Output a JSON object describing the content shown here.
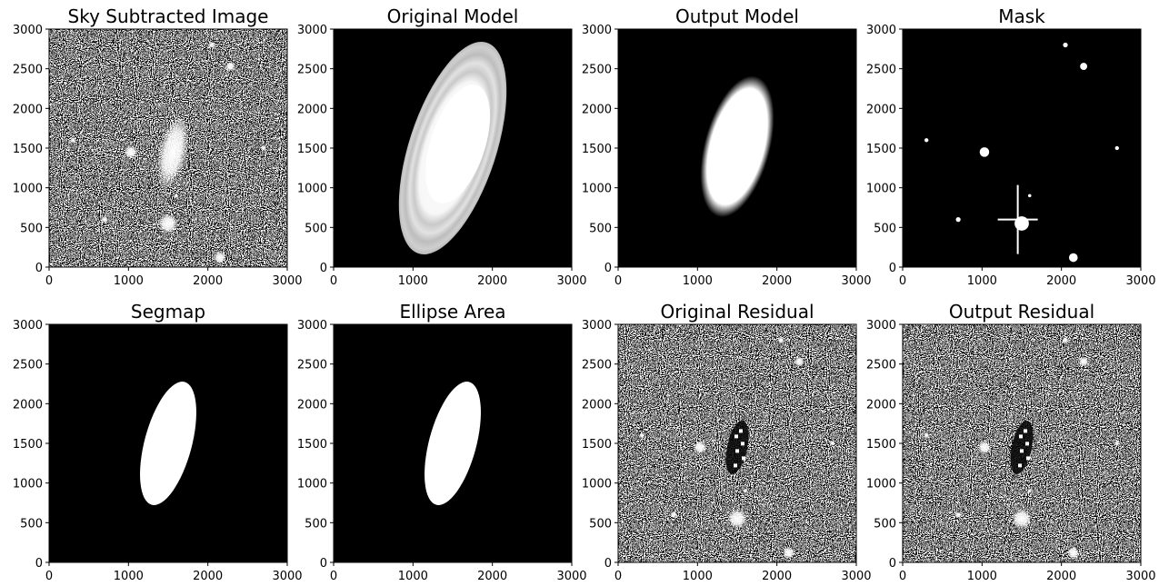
{
  "panels": [
    {
      "id": "sky-subtracted-image",
      "title": "Sky Subtracted Image",
      "content": "noise-field",
      "galaxy": "bright",
      "stars": "visible"
    },
    {
      "id": "original-model",
      "title": "Original Model",
      "content": "ring-ellipse"
    },
    {
      "id": "output-model",
      "title": "Output Model",
      "content": "smooth-ellipse"
    },
    {
      "id": "mask",
      "title": "Mask",
      "content": "mask-field"
    },
    {
      "id": "segmap",
      "title": "Segmap",
      "content": "solid-ellipse"
    },
    {
      "id": "ellipse-area",
      "title": "Ellipse Area",
      "content": "solid-ellipse"
    },
    {
      "id": "original-residual",
      "title": "Original Residual",
      "content": "noise-field",
      "galaxy": "residual",
      "stars": "visible"
    },
    {
      "id": "output-residual",
      "title": "Output Residual",
      "content": "noise-field",
      "galaxy": "residual",
      "stars": "visible"
    }
  ],
  "axes": {
    "x_ticks": [
      "0",
      "1000",
      "2000",
      "3000"
    ],
    "y_ticks": [
      "0",
      "500",
      "1000",
      "1500",
      "2000",
      "2500",
      "3000"
    ],
    "x_range": [
      0,
      3000
    ],
    "y_range": [
      0,
      3000
    ]
  },
  "colormap": "grayscale"
}
